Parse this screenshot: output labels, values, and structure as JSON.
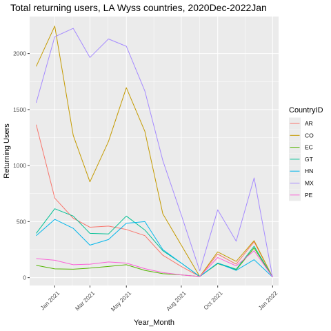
{
  "chart_data": {
    "type": "line",
    "title": "Total returning users, LA Wyss countries, 2020Dec-2022Jan",
    "xlabel": "Year_Month",
    "ylabel": "Returning Users",
    "x": [
      "2020-12-01",
      "2021-01-01",
      "2021-02-01",
      "2021-03-01",
      "2021-04-01",
      "2021-05-01",
      "2021-06-01",
      "2021-07-01",
      "2021-08-01",
      "2021-09-01",
      "2021-10-01",
      "2021-11-01",
      "2021-12-01",
      "2022-01-01"
    ],
    "x_ticks": [
      {
        "date": "2021-01-01",
        "label": "Jan 2021"
      },
      {
        "date": "2021-03-01",
        "label": "Mar 2021"
      },
      {
        "date": "2021-05-01",
        "label": "May 2021"
      },
      {
        "date": "2021-08-01",
        "label": "Aug 2021"
      },
      {
        "date": "2021-10-01",
        "label": "Oct 2021"
      },
      {
        "date": "2022-01-01",
        "label": "Jan 2022"
      }
    ],
    "y_ticks": [
      0,
      500,
      1000,
      1500,
      2000
    ],
    "ylim": [
      -70,
      2330
    ],
    "xlim": [
      "2020-11-20",
      "2022-01-11"
    ],
    "grid": true,
    "legend_title": "CountryID",
    "legend_position": "right",
    "series": [
      {
        "name": "AR",
        "color": "#F8766D",
        "values": [
          1365,
          710,
          530,
          450,
          460,
          430,
          375,
          200,
          100,
          10,
          210,
          120,
          320,
          5
        ]
      },
      {
        "name": "CO",
        "color": "#C49A00",
        "values": [
          1885,
          2245,
          1270,
          855,
          1215,
          1695,
          1305,
          570,
          290,
          10,
          230,
          145,
          330,
          5
        ]
      },
      {
        "name": "EC",
        "color": "#53B400",
        "values": [
          110,
          78,
          75,
          85,
          100,
          115,
          65,
          35,
          25,
          10,
          125,
          70,
          265,
          5
        ]
      },
      {
        "name": "GT",
        "color": "#00C094",
        "values": [
          395,
          615,
          550,
          395,
          390,
          550,
          425,
          240,
          130,
          10,
          130,
          75,
          280,
          5
        ]
      },
      {
        "name": "HN",
        "color": "#00B6EB",
        "values": [
          375,
          520,
          440,
          290,
          340,
          485,
          500,
          250,
          130,
          10,
          130,
          65,
          160,
          5
        ]
      },
      {
        "name": "MX",
        "color": "#A58AFF",
        "values": [
          1560,
          2150,
          2225,
          1965,
          2130,
          2065,
          1665,
          1045,
          560,
          60,
          605,
          325,
          890,
          5
        ]
      },
      {
        "name": "PE",
        "color": "#FB61D7",
        "values": [
          170,
          155,
          115,
          120,
          140,
          130,
          80,
          45,
          25,
          10,
          180,
          105,
          240,
          5
        ]
      }
    ]
  }
}
